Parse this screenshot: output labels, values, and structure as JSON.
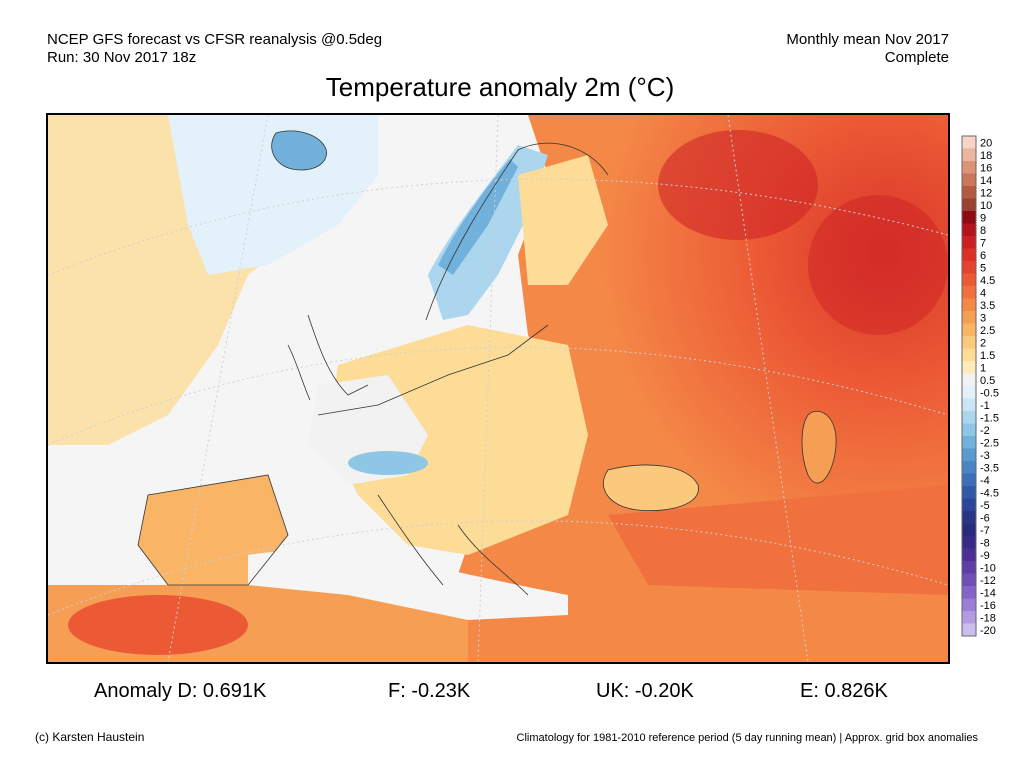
{
  "header": {
    "source_line": "NCEP GFS forecast vs CFSR reanalysis @0.5deg",
    "run_line": "Run: 30 Nov 2017 18z",
    "period_line": "Monthly mean Nov 2017",
    "status_line": "Complete"
  },
  "title": "Temperature anomaly 2m (°C)",
  "legend": {
    "labels": [
      "20",
      "18",
      "16",
      "14",
      "12",
      "10",
      "9",
      "8",
      "7",
      "6",
      "5",
      "4.5",
      "4",
      "3.5",
      "3",
      "2.5",
      "2",
      "1.5",
      "1",
      "0.5",
      "-0.5",
      "-1",
      "-1.5",
      "-2",
      "-2.5",
      "-3",
      "-3.5",
      "-4",
      "-4.5",
      "-5",
      "-6",
      "-7",
      "-8",
      "-9",
      "-10",
      "-12",
      "-14",
      "-16",
      "-18",
      "-20"
    ],
    "colors": [
      "#f6d4c6",
      "#ecb59f",
      "#dc9479",
      "#c9765a",
      "#b35a42",
      "#9c4130",
      "#8e0b12",
      "#b3141c",
      "#cc1f24",
      "#dc2f26",
      "#e74230",
      "#ec5a35",
      "#f0713d",
      "#f48847",
      "#f79e55",
      "#f9b466",
      "#fbc97c",
      "#fcdc97",
      "#fdecba",
      "#f2f2f2",
      "#e3f1fb",
      "#cae6f6",
      "#acd6ee",
      "#8fc5e5",
      "#72b1db",
      "#5a9bcf",
      "#4a85c3",
      "#3d6fb7",
      "#3159a8",
      "#2b4598",
      "#283585",
      "#2a2a7c",
      "#382a86",
      "#4b2f95",
      "#5e3da6",
      "#6f4fb5",
      "#8464c6",
      "#9b7dd4",
      "#b39be1",
      "#cdbcee"
    ]
  },
  "stats": {
    "germany": "Anomaly D: 0.691K",
    "france": "F: -0.23K",
    "uk": "UK: -0.20K",
    "spain": "E: 0.826K"
  },
  "footer": {
    "credit": "(c) Karsten Haustein",
    "note": "Climatology for 1981-2010 reference period (5 day running mean) | Approx. grid box anomalies"
  }
}
